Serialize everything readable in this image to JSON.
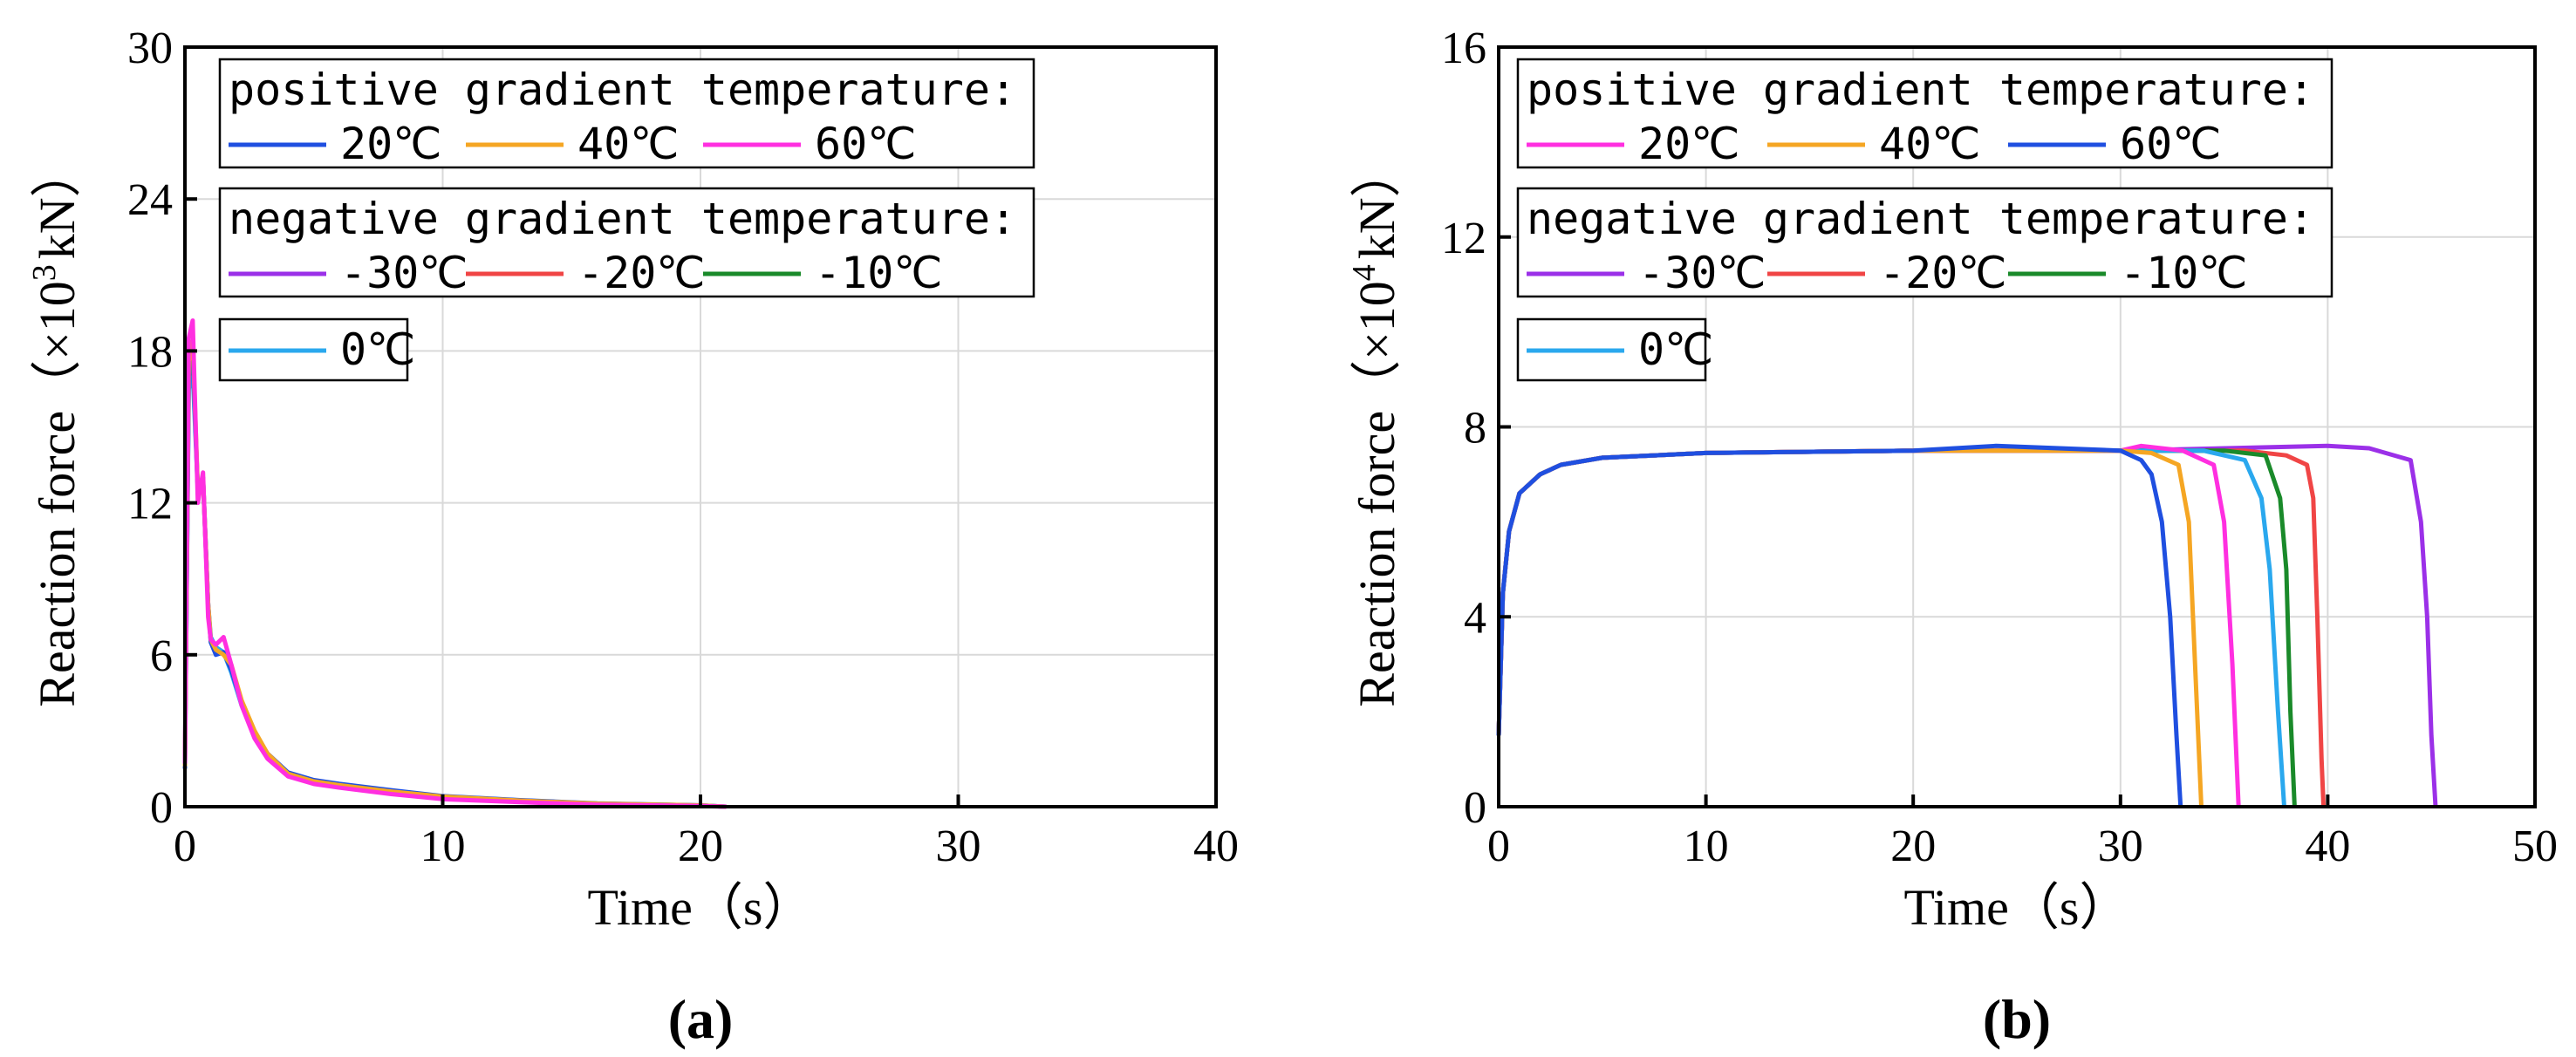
{
  "charts": [
    {
      "id": "a",
      "panel_label": "(a)",
      "xlabel": "Time（s）",
      "ylabel_main": "Reaction force（×10",
      "ylabel_exp": "3",
      "ylabel_unit": "kN）",
      "legend_groups": [
        {
          "title": "positive gradient temperature:",
          "entries": [
            {
              "label": "20℃",
              "color": "#1f4fe0"
            },
            {
              "label": "40℃",
              "color": "#f5a623"
            },
            {
              "label": "60℃",
              "color": "#ff2fe0"
            }
          ]
        },
        {
          "title": "negative gradient temperature:",
          "entries": [
            {
              "label": "-30℃",
              "color": "#9b30e8"
            },
            {
              "label": "-20℃",
              "color": "#f04545"
            },
            {
              "label": "-10℃",
              "color": "#1a8a2a"
            }
          ]
        },
        {
          "title": "",
          "entries": [
            {
              "label": "0℃",
              "color": "#2aa8ee"
            }
          ]
        }
      ],
      "chart_data": {
        "type": "line",
        "xlim": [
          0,
          40
        ],
        "ylim": [
          0,
          30
        ],
        "xticks": [
          "0",
          "10",
          "20",
          "30",
          "40"
        ],
        "yticks": [
          "0",
          "6",
          "12",
          "18",
          "24",
          "30"
        ],
        "grid": true,
        "legend_position": "top-left",
        "series": [
          {
            "name": "0℃",
            "color": "#2aa8ee",
            "x": [
              0,
              0.15,
              0.3,
              0.5,
              0.7,
              0.9,
              1.0,
              1.2,
              1.5,
              1.8,
              2.2,
              2.7,
              3.2,
              4,
              5,
              6,
              8,
              10,
              13,
              16,
              20,
              21
            ],
            "y": [
              1.8,
              16.5,
              17.2,
              12.5,
              13,
              8,
              6.7,
              6.3,
              6.1,
              5.3,
              4.0,
              2.8,
              2.0,
              1.3,
              1.0,
              0.85,
              0.6,
              0.4,
              0.25,
              0.12,
              0.05,
              0
            ]
          },
          {
            "name": "20℃",
            "color": "#1f4fe0",
            "x": [
              0,
              0.15,
              0.3,
              0.5,
              0.7,
              0.9,
              1.0,
              1.2,
              1.5,
              1.8,
              2.2,
              2.7,
              3.2,
              4,
              5,
              6,
              8,
              10,
              13,
              16,
              20,
              21
            ],
            "y": [
              1.5,
              17,
              17.8,
              12.5,
              13,
              8,
              6.5,
              6.0,
              6.1,
              5.4,
              4.1,
              2.9,
              2.1,
              1.35,
              1.05,
              0.9,
              0.65,
              0.42,
              0.26,
              0.13,
              0.05,
              0
            ]
          },
          {
            "name": "40℃",
            "color": "#f5a623",
            "x": [
              0,
              0.15,
              0.3,
              0.5,
              0.7,
              0.9,
              1.0,
              1.2,
              1.5,
              1.8,
              2.2,
              2.7,
              3.2,
              4,
              5,
              6,
              8,
              10,
              13,
              16,
              20,
              21
            ],
            "y": [
              1.6,
              17.6,
              18.4,
              12.5,
              13,
              8,
              6.6,
              6.2,
              6.0,
              5.6,
              4.2,
              3.0,
              2.1,
              1.3,
              1.0,
              0.85,
              0.6,
              0.4,
              0.24,
              0.12,
              0.05,
              0
            ]
          },
          {
            "name": "60℃",
            "color": "#ff2fe0",
            "x": [
              0,
              0.15,
              0.3,
              0.5,
              0.7,
              0.9,
              1.0,
              1.2,
              1.5,
              1.8,
              2.2,
              2.7,
              3.2,
              4,
              5,
              6,
              8,
              10,
              13,
              16,
              20,
              21
            ],
            "y": [
              1.7,
              18.5,
              19.2,
              12.0,
              13.2,
              7.5,
              6.6,
              6.4,
              6.7,
              5.6,
              4.0,
              2.7,
              1.9,
              1.2,
              0.9,
              0.75,
              0.5,
              0.3,
              0.18,
              0.08,
              0.03,
              0
            ]
          }
        ]
      }
    },
    {
      "id": "b",
      "panel_label": "(b)",
      "xlabel": "Time（s）",
      "ylabel_main": "Reaction force（×10",
      "ylabel_exp": "4",
      "ylabel_unit": "kN）",
      "legend_groups": [
        {
          "title": "positive gradient temperature:",
          "entries": [
            {
              "label": "20℃",
              "color": "#ff2fe0"
            },
            {
              "label": "40℃",
              "color": "#f5a623"
            },
            {
              "label": "60℃",
              "color": "#1f4fe0"
            }
          ]
        },
        {
          "title": "negative gradient temperature:",
          "entries": [
            {
              "label": "-30℃",
              "color": "#9b30e8"
            },
            {
              "label": "-20℃",
              "color": "#f04545"
            },
            {
              "label": "-10℃",
              "color": "#1a8a2a"
            }
          ]
        },
        {
          "title": "",
          "entries": [
            {
              "label": "0℃",
              "color": "#2aa8ee"
            }
          ]
        }
      ],
      "chart_data": {
        "type": "line",
        "xlim": [
          0,
          50
        ],
        "ylim": [
          0,
          16
        ],
        "xticks": [
          "0",
          "10",
          "20",
          "30",
          "40",
          "50"
        ],
        "yticks": [
          "0",
          "4",
          "8",
          "12",
          "16"
        ],
        "grid": true,
        "legend_position": "top-left",
        "series": [
          {
            "name": "-30℃",
            "color": "#9b30e8",
            "x": [
              0,
              0.2,
              0.5,
              1,
              1.5,
              2,
              3,
              5,
              10,
              20,
              30,
              40,
              42,
              44,
              44.5,
              44.8,
              45.0,
              45.2
            ],
            "y": [
              1.5,
              4.5,
              5.8,
              6.6,
              6.8,
              7.0,
              7.2,
              7.35,
              7.45,
              7.5,
              7.5,
              7.6,
              7.55,
              7.3,
              6.0,
              4.0,
              1.5,
              0
            ]
          },
          {
            "name": "-20℃",
            "color": "#f04545",
            "x": [
              0,
              0.2,
              0.5,
              1,
              1.5,
              2,
              3,
              5,
              10,
              20,
              30,
              36,
              38,
              39,
              39.3,
              39.5,
              39.7,
              39.8
            ],
            "y": [
              1.5,
              4.5,
              5.8,
              6.6,
              6.8,
              7.0,
              7.2,
              7.35,
              7.45,
              7.5,
              7.5,
              7.5,
              7.4,
              7.2,
              6.5,
              4.0,
              1.0,
              0
            ]
          },
          {
            "name": "-10℃",
            "color": "#1a8a2a",
            "x": [
              0,
              0.2,
              0.5,
              1,
              1.5,
              2,
              3,
              5,
              10,
              20,
              30,
              35,
              37,
              37.7,
              38.0,
              38.2,
              38.4
            ],
            "y": [
              1.5,
              4.5,
              5.8,
              6.6,
              6.8,
              7.0,
              7.2,
              7.35,
              7.45,
              7.5,
              7.5,
              7.5,
              7.4,
              6.5,
              5.0,
              2.0,
              0
            ]
          },
          {
            "name": "0℃",
            "color": "#2aa8ee",
            "x": [
              0,
              0.2,
              0.5,
              1,
              1.5,
              2,
              3,
              5,
              10,
              20,
              30,
              34,
              36,
              36.8,
              37.2,
              37.6,
              37.9
            ],
            "y": [
              1.5,
              4.5,
              5.8,
              6.6,
              6.8,
              7.0,
              7.2,
              7.35,
              7.45,
              7.5,
              7.5,
              7.5,
              7.3,
              6.5,
              5.0,
              2.0,
              0
            ]
          },
          {
            "name": "20℃",
            "color": "#ff2fe0",
            "x": [
              0,
              0.2,
              0.5,
              1,
              1.5,
              2,
              3,
              5,
              10,
              20,
              30,
              31,
              33,
              34.5,
              35.0,
              35.4,
              35.7
            ],
            "y": [
              1.5,
              4.5,
              5.8,
              6.6,
              6.8,
              7.0,
              7.2,
              7.35,
              7.45,
              7.5,
              7.5,
              7.6,
              7.5,
              7.2,
              6.0,
              3.0,
              0
            ]
          },
          {
            "name": "40℃",
            "color": "#f5a623",
            "x": [
              0,
              0.2,
              0.5,
              1,
              1.5,
              2,
              3,
              5,
              10,
              20,
              30,
              31.5,
              32.8,
              33.3,
              33.6,
              33.9
            ],
            "y": [
              1.5,
              4.5,
              5.8,
              6.6,
              6.8,
              7.0,
              7.2,
              7.35,
              7.45,
              7.5,
              7.5,
              7.45,
              7.2,
              6.0,
              3.0,
              0
            ]
          },
          {
            "name": "60℃",
            "color": "#1f4fe0",
            "x": [
              0,
              0.2,
              0.5,
              1,
              1.5,
              2,
              3,
              5,
              10,
              20,
              24,
              30,
              31,
              31.5,
              32.0,
              32.4,
              32.7,
              32.9
            ],
            "y": [
              1.5,
              4.5,
              5.8,
              6.6,
              6.8,
              7.0,
              7.2,
              7.35,
              7.45,
              7.5,
              7.6,
              7.5,
              7.3,
              7.0,
              6.0,
              4.0,
              1.5,
              0
            ]
          }
        ]
      }
    }
  ]
}
